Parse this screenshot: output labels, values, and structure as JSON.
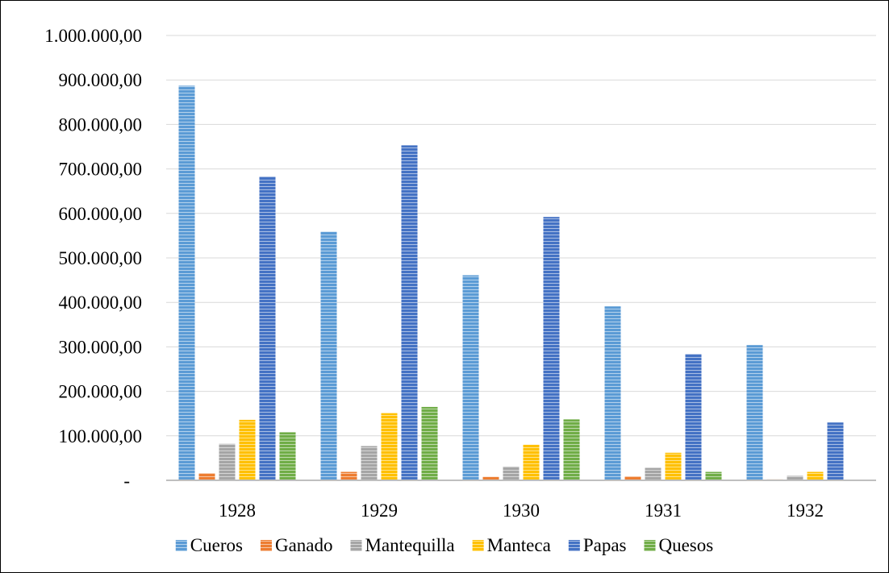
{
  "chart_data": {
    "type": "bar",
    "title": "",
    "xlabel": "",
    "ylabel": "",
    "categories": [
      "1928",
      "1929",
      "1930",
      "1931",
      "1932"
    ],
    "ylim": [
      0,
      1000000
    ],
    "yticks": [
      0,
      100000,
      200000,
      300000,
      400000,
      500000,
      600000,
      700000,
      800000,
      900000,
      1000000
    ],
    "ytick_labels": [
      "-",
      "100.000,00",
      "200.000,00",
      "300.000,00",
      "400.000,00",
      "500.000,00",
      "600.000,00",
      "700.000,00",
      "800.000,00",
      "900.000,00",
      "1.000.000,00"
    ],
    "grid": true,
    "legend_position": "bottom",
    "series": [
      {
        "name": "Cueros",
        "color": "#5b9bd5",
        "values": [
          887000,
          559000,
          461000,
          391000,
          304000
        ]
      },
      {
        "name": "Ganado",
        "color": "#ed7d31",
        "values": [
          16000,
          19000,
          8000,
          9000,
          2000
        ]
      },
      {
        "name": "Mantequilla",
        "color": "#a5a5a5",
        "values": [
          82000,
          77000,
          31000,
          28000,
          10000
        ]
      },
      {
        "name": "Manteca",
        "color": "#ffc000",
        "values": [
          136000,
          151000,
          80000,
          62000,
          19000
        ]
      },
      {
        "name": "Papas",
        "color": "#4472c4",
        "values": [
          683000,
          753000,
          592000,
          284000,
          130000
        ]
      },
      {
        "name": "Quesos",
        "color": "#70ad47",
        "values": [
          108000,
          165000,
          137000,
          19000,
          0
        ]
      }
    ]
  }
}
